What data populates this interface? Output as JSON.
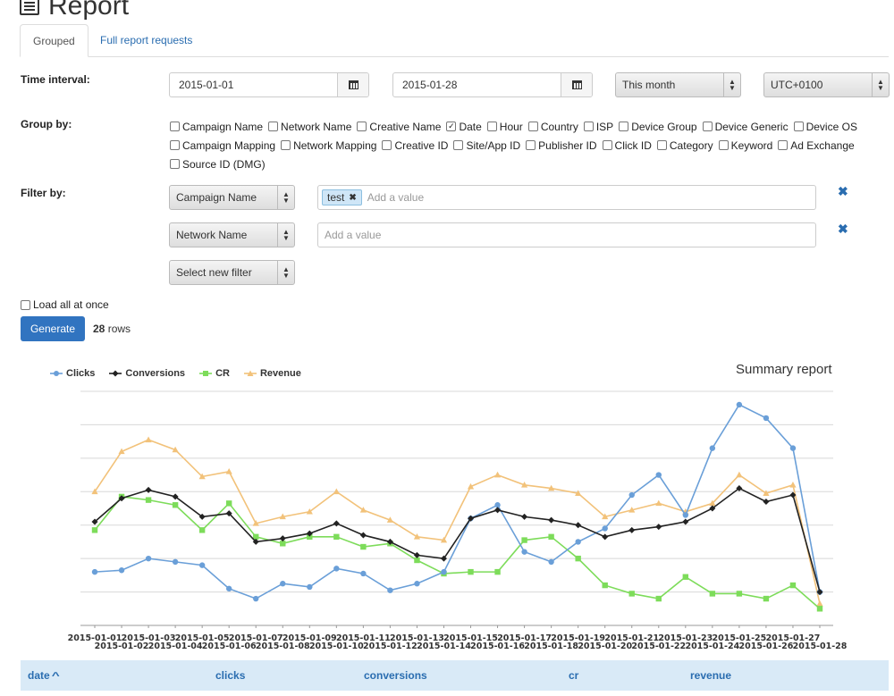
{
  "page_title": "Report",
  "tabs": [
    {
      "label": "Grouped"
    },
    {
      "label": "Full report requests"
    }
  ],
  "time_interval": {
    "label": "Time interval:",
    "start": "2015-01-01",
    "end": "2015-01-28",
    "preset": "This month",
    "timezone": "UTC+0100"
  },
  "group_by": {
    "label": "Group by:",
    "rows": [
      [
        {
          "label": "Campaign Name",
          "checked": false
        },
        {
          "label": "Network Name",
          "checked": false
        },
        {
          "label": "Creative Name",
          "checked": false
        },
        {
          "label": "Date",
          "checked": true
        },
        {
          "label": "Hour",
          "checked": false
        },
        {
          "label": "Country",
          "checked": false
        },
        {
          "label": "ISP",
          "checked": false
        },
        {
          "label": "Device Group",
          "checked": false
        },
        {
          "label": "Device Generic",
          "checked": false
        },
        {
          "label": "Device OS",
          "checked": false
        }
      ],
      [
        {
          "label": "Campaign Mapping",
          "checked": false
        },
        {
          "label": "Network Mapping",
          "checked": false
        },
        {
          "label": "Creative ID",
          "checked": false
        },
        {
          "label": "Site/App ID",
          "checked": false
        },
        {
          "label": "Publisher ID",
          "checked": false
        },
        {
          "label": "Click ID",
          "checked": false
        },
        {
          "label": "Category",
          "checked": false
        },
        {
          "label": "Keyword",
          "checked": false
        },
        {
          "label": "Ad Exchange",
          "checked": false
        }
      ],
      [
        {
          "label": "Source ID (DMG)",
          "checked": false
        }
      ]
    ]
  },
  "filter_by": {
    "label": "Filter by:",
    "filters": [
      {
        "field": "Campaign Name",
        "tags": [
          "test"
        ],
        "placeholder": "Add a value"
      },
      {
        "field": "Network Name",
        "tags": [],
        "placeholder": "Add a value"
      }
    ],
    "new_filter": "Select new filter"
  },
  "load_all": {
    "label": "Load all at once",
    "checked": false
  },
  "generate": {
    "label": "Generate",
    "rows_count": "28",
    "rows_label": "rows"
  },
  "chart_data": {
    "type": "line",
    "title": "Summary report",
    "legend_position": "top-left",
    "grid": true,
    "x": [
      "2015-01-01",
      "2015-01-02",
      "2015-01-03",
      "2015-01-04",
      "2015-01-05",
      "2015-01-06",
      "2015-01-07",
      "2015-01-08",
      "2015-01-09",
      "2015-01-10",
      "2015-01-11",
      "2015-01-12",
      "2015-01-13",
      "2015-01-14",
      "2015-01-15",
      "2015-01-16",
      "2015-01-17",
      "2015-01-18",
      "2015-01-19",
      "2015-01-20",
      "2015-01-21",
      "2015-01-22",
      "2015-01-23",
      "2015-01-24",
      "2015-01-25",
      "2015-01-26",
      "2015-01-27",
      "2015-01-28"
    ],
    "ylim": [
      0,
      7
    ],
    "series": [
      {
        "name": "Clicks",
        "color": "#6a9fd8",
        "marker": "circle",
        "values": [
          1.6,
          1.65,
          2.0,
          1.9,
          1.8,
          1.1,
          0.8,
          1.25,
          1.15,
          1.7,
          1.55,
          1.05,
          1.25,
          1.6,
          3.2,
          3.6,
          2.2,
          1.9,
          2.5,
          2.9,
          3.9,
          4.5,
          3.3,
          5.3,
          6.6,
          6.2,
          5.3,
          1.0
        ]
      },
      {
        "name": "Conversions",
        "color": "#222222",
        "marker": "diamond",
        "values": [
          3.1,
          3.8,
          4.05,
          3.85,
          3.25,
          3.35,
          2.5,
          2.6,
          2.75,
          3.05,
          2.7,
          2.5,
          2.1,
          2.0,
          3.2,
          3.45,
          3.25,
          3.15,
          3.0,
          2.65,
          2.85,
          2.95,
          3.1,
          3.5,
          4.1,
          3.7,
          3.9,
          1.0
        ]
      },
      {
        "name": "CR",
        "color": "#7ddc5a",
        "marker": "square",
        "values": [
          2.85,
          3.85,
          3.75,
          3.6,
          2.85,
          3.65,
          2.65,
          2.45,
          2.65,
          2.65,
          2.35,
          2.45,
          1.95,
          1.55,
          1.6,
          1.6,
          2.55,
          2.65,
          2.0,
          1.2,
          0.95,
          0.8,
          1.45,
          0.95,
          0.95,
          0.8,
          1.2,
          0.5
        ]
      },
      {
        "name": "Revenue",
        "color": "#f2c27a",
        "marker": "triangle",
        "values": [
          4.0,
          5.2,
          5.55,
          5.25,
          4.45,
          4.6,
          3.05,
          3.25,
          3.4,
          4.0,
          3.45,
          3.15,
          2.65,
          2.55,
          4.15,
          4.5,
          4.2,
          4.1,
          3.95,
          3.25,
          3.45,
          3.65,
          3.4,
          3.65,
          4.5,
          3.95,
          4.2,
          0.65
        ]
      }
    ]
  },
  "table": {
    "columns": [
      "date",
      "clicks",
      "conversions",
      "cr",
      "revenue"
    ],
    "sort_indicator": "^"
  }
}
